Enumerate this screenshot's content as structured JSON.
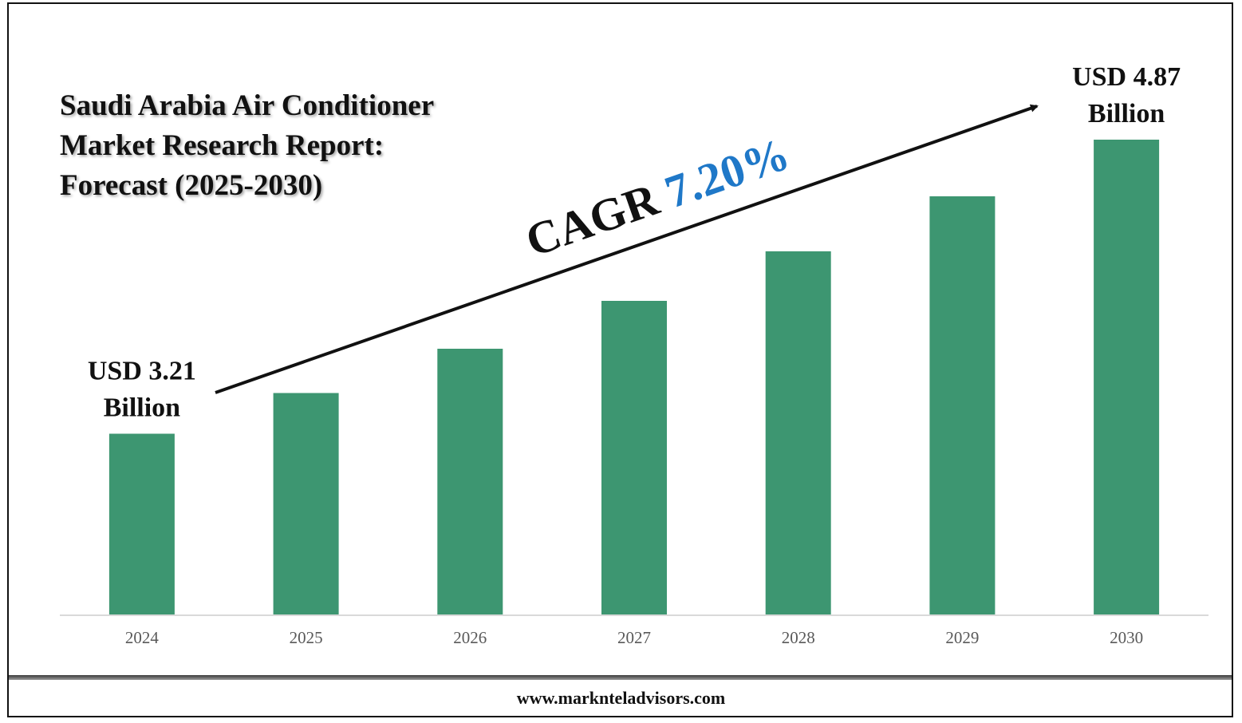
{
  "title_lines": [
    "Saudi Arabia Air Conditioner",
    "Market Research Report:",
    "Forecast (2025-2030)"
  ],
  "footer": "www.marknteladvisors.com",
  "cagr": {
    "label": "CAGR",
    "value": "7.20%",
    "value_color": "#1f78c8"
  },
  "colors": {
    "bar": "#3d9671",
    "axis": "#d9d9d9",
    "tick": "#595959",
    "text": "#111111"
  },
  "chart_data": {
    "type": "bar",
    "categories": [
      "2024",
      "2025",
      "2026",
      "2027",
      "2028",
      "2029",
      "2030"
    ],
    "values": [
      3.21,
      3.44,
      3.69,
      3.96,
      4.24,
      4.55,
      4.87
    ],
    "ylim": [
      2.19,
      4.87
    ],
    "annotations": [
      {
        "category": "2024",
        "lines": [
          "USD 3.21",
          "Billion"
        ]
      },
      {
        "category": "2030",
        "lines": [
          "USD 4.87",
          "Billion"
        ]
      }
    ],
    "grid": false
  }
}
